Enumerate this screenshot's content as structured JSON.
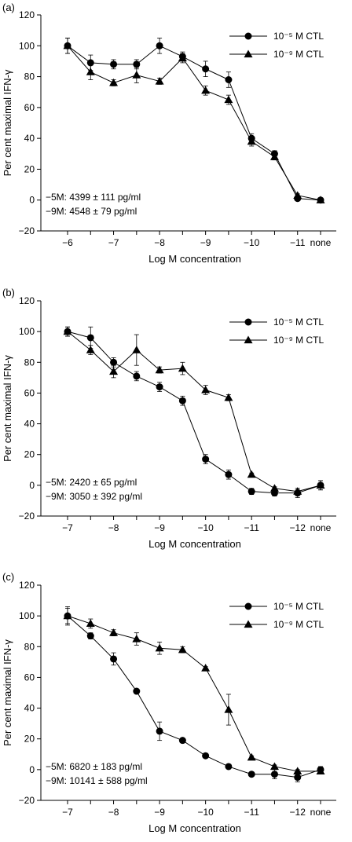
{
  "chart_data": [
    {
      "type": "line",
      "panel_label": "(a)",
      "ylabel": "Per cent maximal IFN-γ",
      "xlabel": "Log M concentration",
      "ylim": [
        -20,
        120
      ],
      "yticks": [
        -20,
        0,
        20,
        40,
        60,
        80,
        100,
        120
      ],
      "categories": [
        "-6",
        "",
        "-7",
        "",
        "-8",
        "",
        "-9",
        "",
        "-10",
        "",
        "-11",
        "none"
      ],
      "series": [
        {
          "name": "10⁻⁵ M CTL",
          "marker": "circle",
          "values": [
            100,
            89,
            88,
            88,
            100,
            93,
            85,
            78,
            40,
            30,
            1,
            0
          ],
          "errors": [
            5,
            5,
            3,
            3,
            5,
            3,
            5,
            5,
            3,
            2,
            1,
            1
          ]
        },
        {
          "name": "10⁻⁹ M CTL",
          "marker": "triangle",
          "values": [
            100,
            83,
            76,
            81,
            77,
            92,
            71,
            65,
            38,
            28,
            3,
            0
          ],
          "errors": [
            5,
            5,
            2,
            5,
            2,
            3,
            3,
            3,
            3,
            2,
            1,
            1
          ]
        }
      ],
      "annotations": [
        "−5M: 4399 ± 111 pg/ml",
        "−9M: 4548 ± 79 pg/ml"
      ],
      "legend": "top-right"
    },
    {
      "type": "line",
      "panel_label": "(b)",
      "ylabel": "Per cent maximal IFN-γ",
      "xlabel": "Log M concentration",
      "ylim": [
        -20,
        120
      ],
      "yticks": [
        -20,
        0,
        20,
        40,
        60,
        80,
        100,
        120
      ],
      "categories": [
        "-7",
        "",
        "-8",
        "",
        "-9",
        "",
        "-10",
        "",
        "-11",
        "",
        "-12",
        "none"
      ],
      "series": [
        {
          "name": "10⁻⁵ M CTL",
          "marker": "circle",
          "values": [
            100,
            96,
            80,
            71,
            64,
            55,
            17,
            7,
            -4,
            -5,
            -5,
            0
          ],
          "errors": [
            3,
            7,
            3,
            3,
            3,
            3,
            3,
            3,
            2,
            2,
            3,
            3
          ]
        },
        {
          "name": "10⁻⁹ M CTL",
          "marker": "triangle",
          "values": [
            100,
            88,
            74,
            88,
            75,
            76,
            62,
            57,
            7,
            -2,
            -4,
            0
          ],
          "errors": [
            3,
            3,
            4,
            10,
            2,
            4,
            3,
            2,
            1,
            1,
            1,
            3
          ]
        }
      ],
      "annotations": [
        "−5M: 2420 ± 65 pg/ml",
        "−9M: 3050 ± 392 pg/ml"
      ],
      "legend": "top-right"
    },
    {
      "type": "line",
      "panel_label": "(c)",
      "ylabel": "Per cent  maximal IFN-γ",
      "xlabel": "Log M concentration",
      "ylim": [
        -20,
        120
      ],
      "yticks": [
        -20,
        0,
        20,
        40,
        60,
        80,
        100,
        120
      ],
      "categories": [
        "-7",
        "",
        "-8",
        "",
        "-9",
        "",
        "-10",
        "",
        "-11",
        "",
        "-12",
        "none"
      ],
      "series": [
        {
          "name": "10⁻⁵ M CTL",
          "marker": "circle",
          "values": [
            100,
            87,
            72,
            51,
            25,
            19,
            9,
            2,
            -3,
            -3,
            -5,
            0
          ],
          "errors": [
            5,
            2,
            4,
            1,
            6,
            1,
            1,
            1,
            1,
            3,
            3,
            2
          ]
        },
        {
          "name": "10⁻⁹ M CTL",
          "marker": "triangle",
          "values": [
            100,
            95,
            89,
            85,
            79,
            78,
            66,
            39,
            8,
            2,
            -1,
            -1
          ],
          "errors": [
            6,
            3,
            2,
            4,
            4,
            2,
            1,
            10,
            1,
            1,
            1,
            1
          ]
        }
      ],
      "annotations": [
        "−5M: 6820 ± 183 pg/ml",
        "−9M: 10141 ± 588 pg/ml"
      ],
      "legend": "top-right"
    }
  ]
}
